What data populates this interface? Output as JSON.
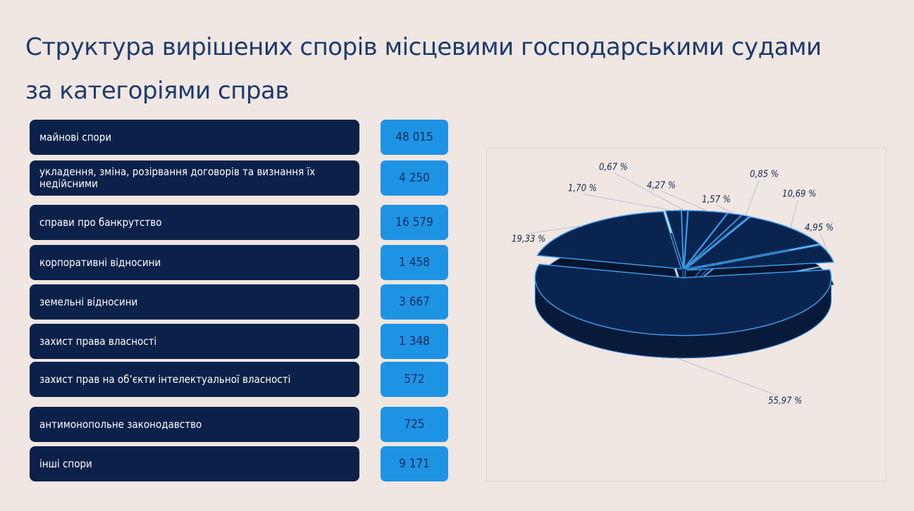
{
  "title_lines": [
    "Структура вирішених спорів місцевими господарськими судами",
    "за категоріями справ"
  ],
  "table": {
    "rows": [
      {
        "label": "майнові спори",
        "value": "48 015"
      },
      {
        "label": "укладення, зміна, розірвання договорів та визнання їх недійсними",
        "value": "4 250"
      },
      {
        "label": "справи про банкрутство",
        "value": "16 579"
      },
      {
        "label": "корпоративні відносини",
        "value": "1 458"
      },
      {
        "label": "земельні відносини",
        "value": "3 667"
      },
      {
        "label": "захист права власності",
        "value": "1 348"
      },
      {
        "label": "захист прав на об’єкти інтелектуальної власності",
        "value": "572"
      },
      {
        "label": "антимонопольне законодавство",
        "value": "725"
      },
      {
        "label": "інші спори",
        "value": "9 171"
      }
    ]
  },
  "chart_data": {
    "type": "pie",
    "values": [
      55.97,
      19.33,
      1.7,
      0.67,
      4.27,
      1.57,
      0.85,
      10.69,
      4.95
    ],
    "value_labels": [
      "55,97 %",
      "19,33 %",
      "1,70 %",
      "0,67 %",
      "4,27 %",
      "1,57 %",
      "0,85 %",
      "10,69 %",
      "4,95 %"
    ],
    "color": "#0a2450"
  }
}
